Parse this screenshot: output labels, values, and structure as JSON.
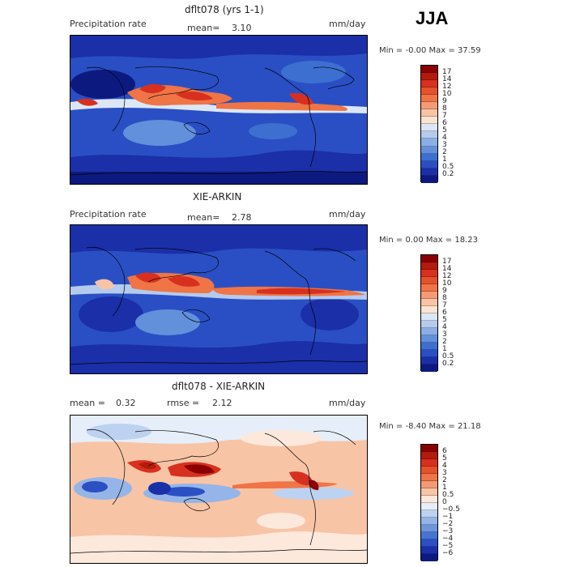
{
  "season": "JJA",
  "panels": [
    {
      "id": "model",
      "title": "dflt078 (yrs 1-1)",
      "left_label": "Precipitation rate",
      "mean_label": "mean=",
      "mean_value": "3.10",
      "units": "mm/day",
      "minmax": "Min =   -0.00 Max =   37.59",
      "colorbar_labels": [
        "17",
        "14",
        "12",
        "10",
        "9",
        "8",
        "7",
        "6",
        "5",
        "4",
        "3",
        "2",
        "1",
        "0.5",
        "0.2"
      ]
    },
    {
      "id": "obs",
      "title": "XIE-ARKIN",
      "left_label": "Precipitation rate",
      "mean_label": "mean=",
      "mean_value": "2.78",
      "units": "mm/day",
      "minmax": "Min =   0.00 Max =   18.23",
      "colorbar_labels": [
        "17",
        "14",
        "12",
        "10",
        "9",
        "8",
        "7",
        "6",
        "5",
        "4",
        "3",
        "2",
        "1",
        "0.5",
        "0.2"
      ]
    },
    {
      "id": "diff",
      "title": "dflt078 - XIE-ARKIN",
      "mean_label": "mean =",
      "mean_value": "0.32",
      "rmse_label": "rmse =",
      "rmse_value": "2.12",
      "units": "mm/day",
      "minmax": "Min =   -8.40 Max =   21.18",
      "colorbar_labels": [
        "6",
        "5",
        "4",
        "3",
        "2",
        "1",
        "0.5",
        "0",
        "−0.5",
        "−1",
        "−2",
        "−3",
        "−4",
        "−5",
        "−6"
      ]
    }
  ],
  "colors": {
    "precip_scale": [
      "#8b0000",
      "#b31b0a",
      "#d7301f",
      "#e4512b",
      "#ef7446",
      "#f49b73",
      "#f8c4a6",
      "#fbe3d2",
      "#dbe7f6",
      "#b4cbee",
      "#8aaee6",
      "#6290db",
      "#3d6fd1",
      "#2a4fc4",
      "#1a2fa8",
      "#0c1a80"
    ],
    "diff_scale": [
      "#8b0000",
      "#b31b0a",
      "#d7301f",
      "#e4512b",
      "#ef7446",
      "#f49b73",
      "#f8c4a6",
      "#fde8dc",
      "#e6eef9",
      "#bcd2f0",
      "#95b5e8",
      "#6c95dc",
      "#4574d2",
      "#2b50c4",
      "#1a30a8",
      "#0c1a80"
    ]
  }
}
